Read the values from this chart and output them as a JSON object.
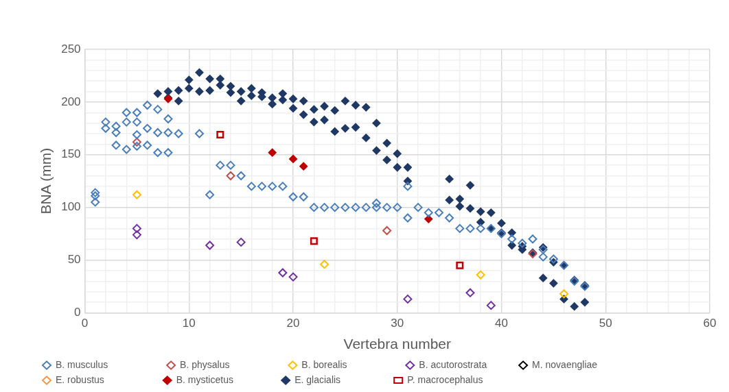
{
  "chart_data": {
    "type": "scatter",
    "xlabel": "Vertebra number",
    "ylabel": "BNA (mm)",
    "xlim": [
      0,
      60
    ],
    "ylim": [
      0,
      250
    ],
    "xticks": [
      0,
      {
        "value": 2,
        "label": null
      },
      {
        "value": 4,
        "label": null
      },
      {
        "value": 6,
        "label": null
      },
      {
        "value": 8,
        "label": null
      },
      10,
      {
        "value": 12,
        "label": null
      },
      {
        "value": 14,
        "label": null
      },
      {
        "value": 16,
        "label": null
      },
      {
        "value": 18,
        "label": null
      },
      20,
      {
        "value": 22,
        "label": null
      },
      {
        "value": 24,
        "label": null
      },
      {
        "value": 26,
        "label": null
      },
      {
        "value": 28,
        "label": null
      },
      30,
      {
        "value": 32,
        "label": null
      },
      {
        "value": 34,
        "label": null
      },
      {
        "value": 36,
        "label": null
      },
      {
        "value": 38,
        "label": null
      },
      40,
      {
        "value": 42,
        "label": null
      },
      {
        "value": 44,
        "label": null
      },
      {
        "value": 46,
        "label": null
      },
      {
        "value": 48,
        "label": null
      },
      50,
      {
        "value": 52,
        "label": null
      },
      {
        "value": 54,
        "label": null
      },
      {
        "value": 56,
        "label": null
      },
      {
        "value": 58,
        "label": null
      },
      60
    ],
    "yticks": [
      0,
      {
        "value": 10,
        "label": null
      },
      {
        "value": 20,
        "label": null
      },
      {
        "value": 30,
        "label": null
      },
      {
        "value": 40,
        "label": null
      },
      50,
      {
        "value": 60,
        "label": null
      },
      {
        "value": 70,
        "label": null
      },
      {
        "value": 80,
        "label": null
      },
      {
        "value": 90,
        "label": null
      },
      100,
      {
        "value": 110,
        "label": null
      },
      {
        "value": 120,
        "label": null
      },
      {
        "value": 130,
        "label": null
      },
      {
        "value": 140,
        "label": null
      },
      150,
      {
        "value": 160,
        "label": null
      },
      {
        "value": 170,
        "label": null
      },
      {
        "value": 180,
        "label": null
      },
      {
        "value": 190,
        "label": null
      },
      200,
      {
        "value": 210,
        "label": null
      },
      {
        "value": 220,
        "label": null
      },
      {
        "value": 230,
        "label": null
      },
      {
        "value": 240,
        "label": null
      },
      250
    ],
    "grid": true,
    "legend": "bottom",
    "marker": "diamond",
    "series": [
      {
        "name": "B. musculus",
        "color": "#4a7ebb",
        "x": [
          1,
          1,
          1,
          2,
          2,
          3,
          3,
          3,
          4,
          4,
          4,
          5,
          5,
          5,
          5,
          6,
          6,
          6,
          7,
          7,
          7,
          8,
          8,
          8,
          9,
          11,
          12,
          13,
          14,
          15,
          16,
          17,
          18,
          19,
          20,
          21,
          22,
          23,
          24,
          25,
          26,
          27,
          28,
          28,
          29,
          30,
          31,
          31,
          32,
          33,
          34,
          35,
          36,
          37,
          38,
          39,
          40,
          41,
          42,
          43,
          44,
          44,
          45,
          46,
          47,
          48
        ],
        "values": [
          114,
          111,
          105,
          181,
          175,
          177,
          171,
          159,
          190,
          181,
          155,
          190,
          181,
          169,
          158,
          197,
          175,
          159,
          193,
          171,
          152,
          184,
          171,
          152,
          170,
          170,
          112,
          140,
          140,
          130,
          120,
          120,
          120,
          120,
          110,
          110,
          100,
          100,
          100,
          100,
          100,
          100,
          104,
          100,
          100,
          100,
          120,
          90,
          100,
          95,
          95,
          90,
          80,
          80,
          80,
          80,
          75,
          70,
          66,
          70,
          60,
          53,
          51,
          45,
          30,
          25
        ]
      },
      {
        "name": "B. physalus",
        "color": "#c0504d",
        "x": [
          5,
          14,
          29,
          43
        ],
        "values": [
          162,
          130,
          78,
          56
        ]
      },
      {
        "name": "B. borealis",
        "color": "#ffc000",
        "x": [
          5,
          23,
          38,
          46
        ],
        "values": [
          112,
          46,
          36,
          18
        ]
      },
      {
        "name": "B. acutorostrata",
        "color": "#7030a0",
        "x": [
          5,
          5,
          12,
          15,
          19,
          20,
          31,
          37,
          39
        ],
        "values": [
          80,
          74,
          64,
          67,
          38,
          34,
          13,
          19,
          7
        ]
      },
      {
        "name": "M. novaengliae",
        "color": "#000000"
      },
      {
        "name": "E. robustus",
        "color": "#f79646"
      },
      {
        "name": "B. mysticetus",
        "color": "#c00000",
        "marker": "diamond",
        "x": [
          8,
          18,
          20,
          21,
          33
        ],
        "values": [
          203,
          152,
          146,
          139,
          89
        ]
      },
      {
        "name": "E. glacialis",
        "color": "#203864",
        "marker": "diamond",
        "x": [
          7,
          8,
          8,
          9,
          9,
          10,
          10,
          11,
          11,
          12,
          12,
          13,
          13,
          14,
          14,
          15,
          15,
          16,
          16,
          17,
          17,
          18,
          18,
          19,
          19,
          20,
          20,
          21,
          21,
          22,
          22,
          23,
          23,
          24,
          24,
          25,
          25,
          26,
          26,
          27,
          27,
          28,
          28,
          29,
          29,
          30,
          30,
          31,
          31,
          35,
          35,
          36,
          36,
          37,
          37,
          38,
          38,
          39,
          39,
          40,
          40,
          41,
          41,
          42,
          42,
          43,
          44,
          44,
          45,
          45,
          46,
          46,
          47,
          47,
          48,
          48
        ],
        "values": [
          208,
          210,
          204,
          211,
          201,
          221,
          213,
          228,
          210,
          222,
          211,
          222,
          216,
          215,
          209,
          210,
          201,
          213,
          206,
          209,
          205,
          204,
          198,
          208,
          202,
          203,
          194,
          201,
          188,
          193,
          181,
          196,
          183,
          192,
          172,
          201,
          175,
          197,
          176,
          195,
          166,
          180,
          154,
          161,
          145,
          151,
          138,
          138,
          125,
          127,
          107,
          108,
          101,
          121,
          99,
          96,
          86,
          95,
          80,
          85,
          76,
          76,
          64,
          63,
          60,
          57,
          62,
          33,
          48,
          28,
          45,
          13,
          31,
          6,
          26,
          10
        ]
      },
      {
        "name": "P. macrocephalus",
        "color": "#c00000",
        "marker": "square",
        "x": [
          13,
          22,
          36
        ],
        "values": [
          169,
          68,
          45
        ]
      }
    ]
  }
}
